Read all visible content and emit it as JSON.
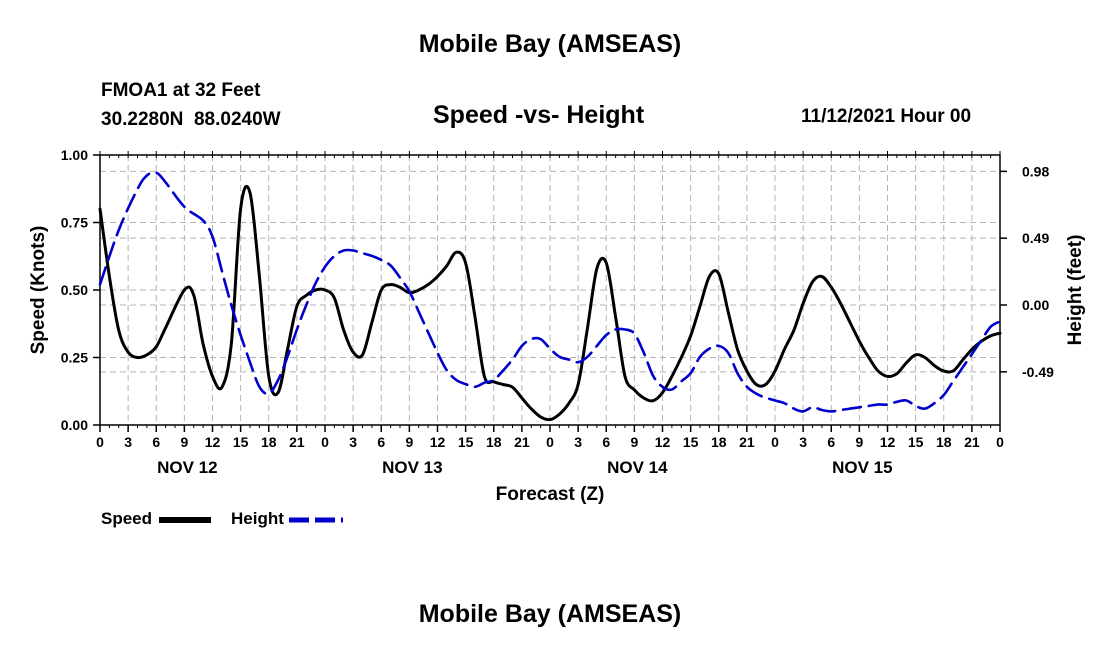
{
  "header": {
    "title": "Mobile Bay (AMSEAS)",
    "station": "FMOA1 at 32 Feet",
    "coords": "30.2280N  88.0240W",
    "run_time": "11/12/2021 Hour 00",
    "title_repeat": "Mobile Bay (AMSEAS)"
  },
  "chart_data": {
    "type": "line",
    "title": "Speed -vs- Height",
    "xlabel": "Forecast (Z)",
    "ylabel": "Speed (Knots)",
    "y2label": "Height (feet)",
    "ylim": [
      0,
      1.0
    ],
    "y2lim": [
      -0.88,
      1.1
    ],
    "grid": true,
    "legend_position": "bottom-left",
    "x_range_hours": [
      0,
      96
    ],
    "x_tick_labels": [
      "0",
      "3",
      "6",
      "9",
      "12",
      "15",
      "18",
      "21",
      "0",
      "3",
      "6",
      "9",
      "12",
      "15",
      "18",
      "21",
      "0",
      "3",
      "6",
      "9",
      "12",
      "15",
      "18",
      "21",
      "0",
      "3",
      "6",
      "9",
      "12",
      "15",
      "18",
      "21",
      "0"
    ],
    "day_labels": [
      {
        "label": "NOV 12",
        "hour": 9
      },
      {
        "label": "NOV 13",
        "hour": 33
      },
      {
        "label": "NOV 14",
        "hour": 57
      },
      {
        "label": "NOV 15",
        "hour": 81
      }
    ],
    "y_ticks": [
      {
        "value": 0.0,
        "label": "0.00"
      },
      {
        "value": 0.25,
        "label": "0.25"
      },
      {
        "value": 0.5,
        "label": "0.50"
      },
      {
        "value": 0.75,
        "label": "0.75"
      },
      {
        "value": 1.0,
        "label": "1.00"
      }
    ],
    "y2_ticks": [
      {
        "value": 0.98,
        "label": "0.98"
      },
      {
        "value": 0.49,
        "label": "0.49"
      },
      {
        "value": 0.0,
        "label": "0.00"
      },
      {
        "value": -0.49,
        "label": "-0.49"
      }
    ],
    "series": [
      {
        "name": "Speed",
        "axis": "left",
        "color": "#000000",
        "dash": "solid",
        "x": [
          0,
          1,
          2,
          3,
          4,
          5,
          6,
          7,
          9,
          10,
          11,
          12,
          13,
          14,
          15,
          16,
          17,
          18,
          19,
          20,
          21,
          22,
          23,
          24,
          25,
          26,
          27,
          28,
          29,
          30,
          31,
          32,
          33,
          34,
          35,
          36,
          37,
          38,
          39,
          40,
          41,
          42,
          43,
          44,
          45,
          46,
          47,
          48,
          49,
          50,
          51,
          52,
          53,
          54,
          55,
          56,
          57,
          58,
          59,
          60,
          61,
          62,
          63,
          64,
          65,
          66,
          67,
          68,
          69,
          70,
          71,
          72,
          73,
          74,
          75,
          76,
          77,
          78,
          79,
          80,
          81,
          82,
          83,
          84,
          85,
          86,
          87,
          88,
          89,
          90,
          91,
          92,
          93,
          94,
          95,
          96
        ],
        "values": [
          0.8,
          0.55,
          0.35,
          0.27,
          0.25,
          0.26,
          0.29,
          0.36,
          0.5,
          0.48,
          0.3,
          0.18,
          0.14,
          0.3,
          0.8,
          0.86,
          0.55,
          0.18,
          0.12,
          0.28,
          0.44,
          0.48,
          0.5,
          0.5,
          0.47,
          0.35,
          0.27,
          0.26,
          0.38,
          0.5,
          0.52,
          0.51,
          0.49,
          0.5,
          0.52,
          0.55,
          0.59,
          0.64,
          0.6,
          0.4,
          0.18,
          0.16,
          0.15,
          0.14,
          0.1,
          0.06,
          0.03,
          0.02,
          0.04,
          0.08,
          0.15,
          0.36,
          0.58,
          0.6,
          0.4,
          0.18,
          0.13,
          0.1,
          0.09,
          0.12,
          0.18,
          0.25,
          0.33,
          0.44,
          0.55,
          0.56,
          0.42,
          0.28,
          0.2,
          0.15,
          0.15,
          0.2,
          0.28,
          0.35,
          0.45,
          0.53,
          0.55,
          0.51,
          0.45,
          0.38,
          0.31,
          0.25,
          0.2,
          0.18,
          0.19,
          0.23,
          0.26,
          0.25,
          0.22,
          0.2,
          0.2,
          0.24,
          0.28,
          0.31,
          0.33,
          0.34
        ]
      },
      {
        "name": "Height",
        "axis": "right",
        "color": "#0000CC",
        "dash": "dashed",
        "x": [
          0,
          2,
          4,
          5,
          6,
          7,
          9,
          11,
          12,
          13,
          14,
          15,
          16,
          17,
          18,
          19,
          20,
          21,
          22,
          23,
          24,
          25,
          26,
          27,
          28,
          29,
          30,
          31,
          32,
          33,
          34,
          35,
          36,
          37,
          38,
          39,
          40,
          41,
          42,
          43,
          44,
          45,
          46,
          47,
          48,
          49,
          50,
          51,
          52,
          53,
          54,
          55,
          56,
          57,
          58,
          59,
          60,
          61,
          62,
          63,
          64,
          65,
          66,
          67,
          68,
          69,
          70,
          71,
          72,
          73,
          74,
          75,
          76,
          77,
          78,
          79,
          80,
          81,
          82,
          83,
          84,
          85,
          86,
          87,
          88,
          89,
          90,
          91,
          92,
          93,
          94,
          95,
          96
        ],
        "values": [
          0.15,
          0.55,
          0.85,
          0.95,
          0.97,
          0.9,
          0.72,
          0.62,
          0.5,
          0.25,
          0.0,
          -0.22,
          -0.42,
          -0.6,
          -0.65,
          -0.55,
          -0.38,
          -0.18,
          0.0,
          0.16,
          0.28,
          0.36,
          0.4,
          0.4,
          0.38,
          0.36,
          0.33,
          0.29,
          0.2,
          0.1,
          -0.05,
          -0.2,
          -0.35,
          -0.48,
          -0.55,
          -0.58,
          -0.6,
          -0.57,
          -0.55,
          -0.48,
          -0.4,
          -0.3,
          -0.25,
          -0.25,
          -0.32,
          -0.38,
          -0.4,
          -0.42,
          -0.38,
          -0.3,
          -0.22,
          -0.18,
          -0.18,
          -0.21,
          -0.35,
          -0.52,
          -0.6,
          -0.62,
          -0.56,
          -0.5,
          -0.38,
          -0.32,
          -0.3,
          -0.35,
          -0.5,
          -0.6,
          -0.65,
          -0.68,
          -0.7,
          -0.72,
          -0.76,
          -0.78,
          -0.75,
          -0.77,
          -0.78,
          -0.77,
          -0.76,
          -0.75,
          -0.74,
          -0.73,
          -0.73,
          -0.71,
          -0.7,
          -0.74,
          -0.76,
          -0.72,
          -0.66,
          -0.56,
          -0.46,
          -0.36,
          -0.26,
          -0.16,
          -0.12
        ]
      }
    ]
  }
}
